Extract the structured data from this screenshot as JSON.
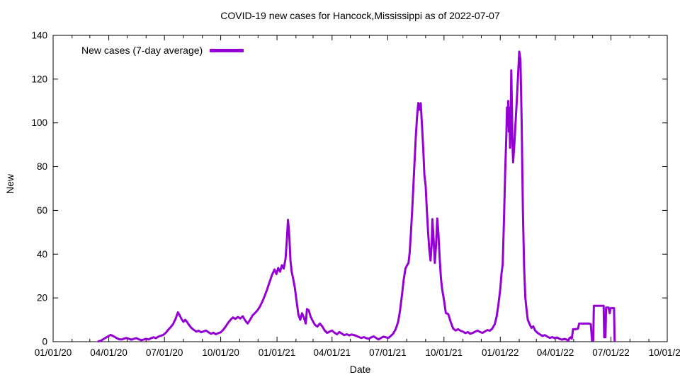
{
  "chart_data": {
    "type": "line",
    "title": "COVID-19 new cases for Hancock,Mississippi as of 2022-07-07",
    "xlabel": "Date",
    "ylabel": "New",
    "grid": false,
    "legend_position": "top-left-inside",
    "legend": [
      {
        "label": "New cases (7-day average)",
        "color": "#9400D3"
      }
    ],
    "axis_color": "#000000",
    "x_range": [
      "2020-01-01",
      "2022-10-01"
    ],
    "ylim": [
      0,
      140
    ],
    "y_ticks": [
      0,
      20,
      40,
      60,
      80,
      100,
      120,
      140
    ],
    "x_ticks": [
      {
        "date": "2020-01-01",
        "label": "01/01/20"
      },
      {
        "date": "2020-04-01",
        "label": "04/01/20"
      },
      {
        "date": "2020-07-01",
        "label": "07/01/20"
      },
      {
        "date": "2020-10-01",
        "label": "10/01/20"
      },
      {
        "date": "2021-01-01",
        "label": "01/01/21"
      },
      {
        "date": "2021-04-01",
        "label": "04/01/21"
      },
      {
        "date": "2021-07-01",
        "label": "07/01/21"
      },
      {
        "date": "2021-10-01",
        "label": "10/01/21"
      },
      {
        "date": "2022-01-01",
        "label": "01/01/22"
      },
      {
        "date": "2022-04-01",
        "label": "04/01/22"
      },
      {
        "date": "2022-07-01",
        "label": "07/01/22"
      },
      {
        "date": "2022-10-01",
        "label": "10/01/22"
      }
    ],
    "x_minor_tick_interval_months": 1,
    "series": [
      {
        "name": "New cases (7-day average)",
        "color": "#9400D3",
        "points": [
          [
            "2020-03-14",
            0
          ],
          [
            "2020-03-17",
            0.3
          ],
          [
            "2020-03-20",
            0.6
          ],
          [
            "2020-03-24",
            1.3
          ],
          [
            "2020-03-28",
            2.0
          ],
          [
            "2020-04-01",
            2.6
          ],
          [
            "2020-04-04",
            3.1
          ],
          [
            "2020-04-07",
            2.7
          ],
          [
            "2020-04-10",
            2.3
          ],
          [
            "2020-04-14",
            1.6
          ],
          [
            "2020-04-18",
            1.1
          ],
          [
            "2020-04-22",
            1.0
          ],
          [
            "2020-04-26",
            1.4
          ],
          [
            "2020-04-30",
            1.7
          ],
          [
            "2020-05-04",
            1.3
          ],
          [
            "2020-05-08",
            0.9
          ],
          [
            "2020-05-12",
            1.3
          ],
          [
            "2020-05-16",
            1.6
          ],
          [
            "2020-05-20",
            1.1
          ],
          [
            "2020-05-24",
            0.7
          ],
          [
            "2020-05-28",
            1.0
          ],
          [
            "2020-06-01",
            1.3
          ],
          [
            "2020-06-05",
            1.0
          ],
          [
            "2020-06-09",
            1.6
          ],
          [
            "2020-06-13",
            2.0
          ],
          [
            "2020-06-17",
            1.6
          ],
          [
            "2020-06-21",
            2.3
          ],
          [
            "2020-06-25",
            2.7
          ],
          [
            "2020-06-29",
            3.1
          ],
          [
            "2020-07-03",
            4.0
          ],
          [
            "2020-07-07",
            5.4
          ],
          [
            "2020-07-11",
            6.6
          ],
          [
            "2020-07-15",
            8.0
          ],
          [
            "2020-07-19",
            10.3
          ],
          [
            "2020-07-23",
            13.4
          ],
          [
            "2020-07-26",
            12.0
          ],
          [
            "2020-07-29",
            10.3
          ],
          [
            "2020-08-01",
            9.1
          ],
          [
            "2020-08-04",
            10.0
          ],
          [
            "2020-08-07",
            9.0
          ],
          [
            "2020-08-10",
            7.7
          ],
          [
            "2020-08-14",
            6.3
          ],
          [
            "2020-08-18",
            5.4
          ],
          [
            "2020-08-22",
            4.6
          ],
          [
            "2020-08-26",
            5.0
          ],
          [
            "2020-08-30",
            4.3
          ],
          [
            "2020-09-03",
            4.7
          ],
          [
            "2020-09-07",
            5.1
          ],
          [
            "2020-09-11",
            4.3
          ],
          [
            "2020-09-15",
            3.6
          ],
          [
            "2020-09-19",
            4.1
          ],
          [
            "2020-09-23",
            3.4
          ],
          [
            "2020-09-27",
            3.9
          ],
          [
            "2020-10-01",
            4.3
          ],
          [
            "2020-10-05",
            5.4
          ],
          [
            "2020-10-09",
            6.9
          ],
          [
            "2020-10-13",
            8.6
          ],
          [
            "2020-10-17",
            10.0
          ],
          [
            "2020-10-21",
            11.1
          ],
          [
            "2020-10-25",
            10.4
          ],
          [
            "2020-10-29",
            11.3
          ],
          [
            "2020-11-02",
            10.6
          ],
          [
            "2020-11-06",
            11.6
          ],
          [
            "2020-11-10",
            9.7
          ],
          [
            "2020-11-14",
            8.3
          ],
          [
            "2020-11-18",
            10.0
          ],
          [
            "2020-11-22",
            12.0
          ],
          [
            "2020-11-26",
            13.1
          ],
          [
            "2020-11-30",
            14.3
          ],
          [
            "2020-12-04",
            16.0
          ],
          [
            "2020-12-08",
            18.3
          ],
          [
            "2020-12-12",
            21.0
          ],
          [
            "2020-12-16",
            24.0
          ],
          [
            "2020-12-20",
            27.4
          ],
          [
            "2020-12-24",
            30.6
          ],
          [
            "2020-12-28",
            33.0
          ],
          [
            "2020-12-31",
            30.9
          ],
          [
            "2021-01-03",
            33.7
          ],
          [
            "2021-01-06",
            32.0
          ],
          [
            "2021-01-09",
            34.9
          ],
          [
            "2021-01-12",
            33.4
          ],
          [
            "2021-01-15",
            38.0
          ],
          [
            "2021-01-17",
            46.0
          ],
          [
            "2021-01-19",
            55.7
          ],
          [
            "2021-01-21",
            49.0
          ],
          [
            "2021-01-23",
            37.0
          ],
          [
            "2021-01-25",
            32.0
          ],
          [
            "2021-01-27",
            29.4
          ],
          [
            "2021-01-30",
            25.0
          ],
          [
            "2021-02-02",
            18.6
          ],
          [
            "2021-02-05",
            12.3
          ],
          [
            "2021-02-08",
            10.0
          ],
          [
            "2021-02-11",
            13.0
          ],
          [
            "2021-02-14",
            11.0
          ],
          [
            "2021-02-17",
            8.3
          ],
          [
            "2021-02-19",
            14.9
          ],
          [
            "2021-02-22",
            14.3
          ],
          [
            "2021-02-25",
            11.4
          ],
          [
            "2021-02-28",
            9.7
          ],
          [
            "2021-03-04",
            7.7
          ],
          [
            "2021-03-08",
            6.9
          ],
          [
            "2021-03-12",
            8.3
          ],
          [
            "2021-03-16",
            7.0
          ],
          [
            "2021-03-20",
            5.1
          ],
          [
            "2021-03-24",
            4.0
          ],
          [
            "2021-03-28",
            4.6
          ],
          [
            "2021-04-01",
            5.1
          ],
          [
            "2021-04-05",
            4.1
          ],
          [
            "2021-04-09",
            3.4
          ],
          [
            "2021-04-13",
            4.4
          ],
          [
            "2021-04-17",
            3.7
          ],
          [
            "2021-04-21",
            3.0
          ],
          [
            "2021-04-25",
            3.4
          ],
          [
            "2021-04-29",
            2.9
          ],
          [
            "2021-05-03",
            3.3
          ],
          [
            "2021-05-07",
            3.0
          ],
          [
            "2021-05-11",
            2.6
          ],
          [
            "2021-05-15",
            2.1
          ],
          [
            "2021-05-19",
            1.7
          ],
          [
            "2021-05-23",
            2.1
          ],
          [
            "2021-05-27",
            1.6
          ],
          [
            "2021-05-31",
            1.3
          ],
          [
            "2021-06-04",
            2.0
          ],
          [
            "2021-06-08",
            2.4
          ],
          [
            "2021-06-12",
            1.7
          ],
          [
            "2021-06-16",
            1.0
          ],
          [
            "2021-06-20",
            1.7
          ],
          [
            "2021-06-24",
            2.3
          ],
          [
            "2021-06-28",
            2.0
          ],
          [
            "2021-07-02",
            1.7
          ],
          [
            "2021-07-06",
            2.6
          ],
          [
            "2021-07-10",
            3.7
          ],
          [
            "2021-07-14",
            5.7
          ],
          [
            "2021-07-18",
            9.0
          ],
          [
            "2021-07-21",
            14.0
          ],
          [
            "2021-07-24",
            20.6
          ],
          [
            "2021-07-27",
            28.0
          ],
          [
            "2021-07-30",
            33.4
          ],
          [
            "2021-08-02",
            35.1
          ],
          [
            "2021-08-04",
            36.0
          ],
          [
            "2021-08-06",
            41.0
          ],
          [
            "2021-08-08",
            50.0
          ],
          [
            "2021-08-10",
            60.0
          ],
          [
            "2021-08-12",
            71.4
          ],
          [
            "2021-08-14",
            83.0
          ],
          [
            "2021-08-16",
            94.0
          ],
          [
            "2021-08-18",
            103.0
          ],
          [
            "2021-08-20",
            109.1
          ],
          [
            "2021-08-22",
            106.0
          ],
          [
            "2021-08-24",
            109.0
          ],
          [
            "2021-08-26",
            99.0
          ],
          [
            "2021-08-28",
            88.6
          ],
          [
            "2021-08-30",
            76.0
          ],
          [
            "2021-09-01",
            71.4
          ],
          [
            "2021-09-03",
            60.0
          ],
          [
            "2021-09-05",
            50.3
          ],
          [
            "2021-09-07",
            42.0
          ],
          [
            "2021-09-09",
            37.1
          ],
          [
            "2021-09-11",
            45.0
          ],
          [
            "2021-09-12",
            56.0
          ],
          [
            "2021-09-14",
            47.0
          ],
          [
            "2021-09-16",
            36.0
          ],
          [
            "2021-09-18",
            44.0
          ],
          [
            "2021-09-20",
            56.3
          ],
          [
            "2021-09-22",
            49.0
          ],
          [
            "2021-09-24",
            38.0
          ],
          [
            "2021-09-26",
            29.0
          ],
          [
            "2021-09-28",
            24.0
          ],
          [
            "2021-10-01",
            19.0
          ],
          [
            "2021-10-04",
            13.1
          ],
          [
            "2021-10-08",
            12.6
          ],
          [
            "2021-10-12",
            9.0
          ],
          [
            "2021-10-16",
            6.0
          ],
          [
            "2021-10-20",
            5.1
          ],
          [
            "2021-10-24",
            5.7
          ],
          [
            "2021-10-28",
            5.0
          ],
          [
            "2021-11-01",
            4.6
          ],
          [
            "2021-11-05",
            3.9
          ],
          [
            "2021-11-09",
            4.4
          ],
          [
            "2021-11-13",
            3.6
          ],
          [
            "2021-11-17",
            4.0
          ],
          [
            "2021-11-21",
            4.6
          ],
          [
            "2021-11-25",
            5.1
          ],
          [
            "2021-11-29",
            4.4
          ],
          [
            "2021-12-03",
            4.0
          ],
          [
            "2021-12-07",
            4.7
          ],
          [
            "2021-12-11",
            5.3
          ],
          [
            "2021-12-15",
            5.0
          ],
          [
            "2021-12-19",
            6.0
          ],
          [
            "2021-12-23",
            8.0
          ],
          [
            "2021-12-26",
            11.4
          ],
          [
            "2021-12-29",
            17.0
          ],
          [
            "2022-01-01",
            24.0
          ],
          [
            "2022-01-03",
            31.0
          ],
          [
            "2022-01-05",
            35.4
          ],
          [
            "2022-01-07",
            55.0
          ],
          [
            "2022-01-09",
            77.0
          ],
          [
            "2022-01-11",
            95.0
          ],
          [
            "2022-01-12",
            107.0
          ],
          [
            "2022-01-13",
            100.0
          ],
          [
            "2022-01-14",
            110.0
          ],
          [
            "2022-01-15",
            96.0
          ],
          [
            "2022-01-16",
            107.0
          ],
          [
            "2022-01-17",
            88.6
          ],
          [
            "2022-01-18",
            100.0
          ],
          [
            "2022-01-19",
            124.0
          ],
          [
            "2022-01-20",
            108.0
          ],
          [
            "2022-01-21",
            90.0
          ],
          [
            "2022-01-22",
            82.0
          ],
          [
            "2022-01-24",
            90.0
          ],
          [
            "2022-01-26",
            100.0
          ],
          [
            "2022-01-28",
            110.0
          ],
          [
            "2022-01-30",
            121.0
          ],
          [
            "2022-02-01",
            132.6
          ],
          [
            "2022-02-03",
            129.0
          ],
          [
            "2022-02-05",
            100.0
          ],
          [
            "2022-02-07",
            60.0
          ],
          [
            "2022-02-09",
            34.0
          ],
          [
            "2022-02-11",
            20.0
          ],
          [
            "2022-02-13",
            14.6
          ],
          [
            "2022-02-15",
            10.0
          ],
          [
            "2022-02-18",
            8.0
          ],
          [
            "2022-02-21",
            6.3
          ],
          [
            "2022-02-24",
            7.0
          ],
          [
            "2022-02-27",
            5.1
          ],
          [
            "2022-03-03",
            4.0
          ],
          [
            "2022-03-07",
            3.3
          ],
          [
            "2022-03-11",
            2.6
          ],
          [
            "2022-03-15",
            3.0
          ],
          [
            "2022-03-19",
            2.3
          ],
          [
            "2022-03-23",
            1.7
          ],
          [
            "2022-03-27",
            2.1
          ],
          [
            "2022-03-31",
            1.6
          ],
          [
            "2022-04-04",
            1.9
          ],
          [
            "2022-04-08",
            1.3
          ],
          [
            "2022-04-12",
            0.9
          ],
          [
            "2022-04-16",
            1.3
          ],
          [
            "2022-04-20",
            0.9
          ],
          [
            "2022-04-22",
            0.3
          ],
          [
            "2022-04-24",
            1.6
          ],
          [
            "2022-04-26",
            2.0
          ],
          [
            "2022-04-28",
            1.4
          ],
          [
            "2022-04-30",
            5.7
          ],
          [
            "2022-05-04",
            5.7
          ],
          [
            "2022-05-08",
            5.9
          ],
          [
            "2022-05-10",
            8.3
          ],
          [
            "2022-05-14",
            8.3
          ],
          [
            "2022-05-18",
            8.3
          ],
          [
            "2022-05-22",
            8.3
          ],
          [
            "2022-05-26",
            8.3
          ],
          [
            "2022-05-29",
            8.0
          ],
          [
            "2022-05-31",
            0.6
          ],
          [
            "2022-06-02",
            0.6
          ],
          [
            "2022-06-03",
            16.4
          ],
          [
            "2022-06-07",
            16.4
          ],
          [
            "2022-06-11",
            16.4
          ],
          [
            "2022-06-15",
            16.4
          ],
          [
            "2022-06-19",
            16.4
          ],
          [
            "2022-06-20",
            2.0
          ],
          [
            "2022-06-22",
            2.0
          ],
          [
            "2022-06-23",
            15.6
          ],
          [
            "2022-06-27",
            15.6
          ],
          [
            "2022-06-29",
            13.0
          ],
          [
            "2022-06-30",
            15.3
          ],
          [
            "2022-07-03",
            15.3
          ],
          [
            "2022-07-06",
            15.3
          ],
          [
            "2022-07-07",
            0
          ]
        ]
      }
    ]
  }
}
